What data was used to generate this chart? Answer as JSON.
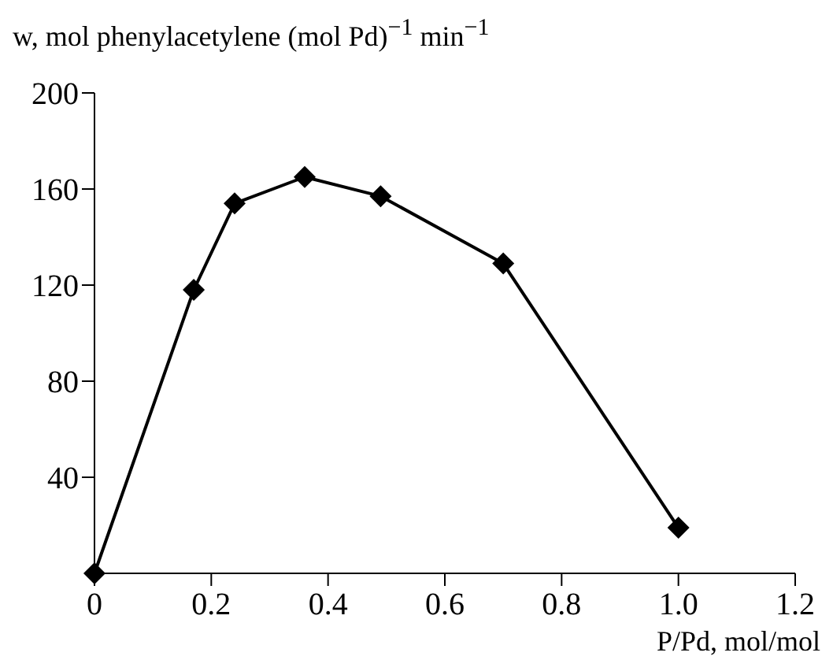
{
  "chart_data": {
    "type": "line",
    "ylabel": "w, mol phenylacetylene (mol Pd)$^{−1}$ min$^{−1}$",
    "xlabel": "P/Pd, mol/mol",
    "x": [
      0,
      0.17,
      0.24,
      0.36,
      0.49,
      0.7,
      1.0
    ],
    "series": [
      {
        "color": "#000000",
        "values": [
          0,
          118,
          154,
          165,
          157,
          129,
          19
        ]
      }
    ],
    "xlim": [
      0,
      1.2
    ],
    "xticks": [
      0,
      0.2,
      0.4,
      0.6,
      0.8,
      {
        "value": 1.0,
        "label": "1.0"
      },
      1.2
    ],
    "ylim": [
      0,
      200
    ],
    "yticks": [
      40,
      80,
      120,
      160,
      200
    ],
    "grid": false,
    "legend": false,
    "marker": "diamond",
    "line_style": "solid"
  }
}
